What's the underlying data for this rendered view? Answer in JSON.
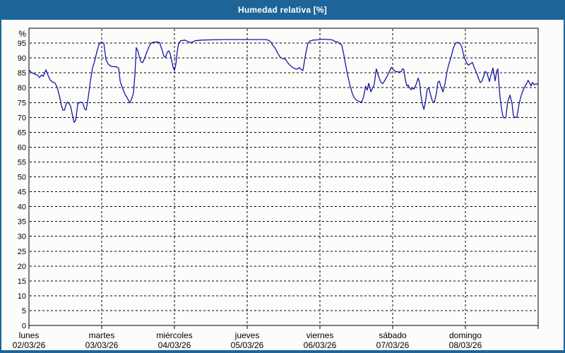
{
  "window": {
    "title": "Humedad relativa [%]"
  },
  "colors": {
    "titlebar_and_border": "#1d6598",
    "title_text": "#ffffff",
    "background": "#fcfdfb",
    "grid": "#000000",
    "series_line": "#1515a3"
  },
  "chart_data": {
    "type": "line",
    "title": "Humedad relativa [%]",
    "y_unit": "%",
    "ylim": [
      0,
      100
    ],
    "y_ticks": [
      0,
      5,
      10,
      15,
      20,
      25,
      30,
      35,
      40,
      45,
      50,
      55,
      60,
      65,
      70,
      75,
      80,
      85,
      90,
      95
    ],
    "x_span_hours": 168,
    "x_day_ticks_hours": [
      0,
      24,
      48,
      72,
      96,
      120,
      144,
      168
    ],
    "grid": "dashed",
    "legend": "none",
    "x_days": [
      {
        "name": "lunes",
        "date": "02/03/26"
      },
      {
        "name": "martes",
        "date": "03/03/26"
      },
      {
        "name": "miércoles",
        "date": "04/03/26"
      },
      {
        "name": "jueves",
        "date": "05/03/26"
      },
      {
        "name": "viernes",
        "date": "06/03/26"
      },
      {
        "name": "sábado",
        "date": "07/03/26"
      },
      {
        "name": "domingo",
        "date": "08/03/26"
      }
    ],
    "series": [
      {
        "name": "Humedad relativa",
        "color": "#1515a3",
        "points": [
          [
            0,
            86.0
          ],
          [
            0.7,
            85.2
          ],
          [
            1.6,
            84.7
          ],
          [
            2.8,
            84.2
          ],
          [
            3.5,
            83.4
          ],
          [
            4.2,
            84.3
          ],
          [
            4.7,
            83.8
          ],
          [
            5.6,
            86.0
          ],
          [
            6.3,
            84.2
          ],
          [
            7.0,
            82.6
          ],
          [
            7.9,
            81.8
          ],
          [
            8.6,
            81.6
          ],
          [
            9.3,
            80.2
          ],
          [
            9.8,
            78.2
          ],
          [
            10.3,
            76.2
          ],
          [
            10.7,
            74.0
          ],
          [
            11.2,
            72.5
          ],
          [
            11.7,
            72.4
          ],
          [
            12.3,
            74.6
          ],
          [
            12.8,
            75.2
          ],
          [
            13.7,
            73.9
          ],
          [
            14.4,
            70.5
          ],
          [
            14.9,
            68.3
          ],
          [
            15.4,
            69.0
          ],
          [
            16.1,
            74.5
          ],
          [
            16.8,
            75.1
          ],
          [
            17.7,
            75.0
          ],
          [
            18.4,
            72.8
          ],
          [
            18.9,
            72.5
          ],
          [
            19.6,
            77.0
          ],
          [
            20.3,
            82.4
          ],
          [
            21.0,
            86.8
          ],
          [
            21.7,
            89.0
          ],
          [
            22.4,
            92.0
          ],
          [
            23.1,
            94.5
          ],
          [
            23.8,
            95.3
          ],
          [
            24.7,
            95.0
          ],
          [
            25.4,
            89.6
          ],
          [
            26.1,
            88.0
          ],
          [
            27.0,
            87.2
          ],
          [
            27.7,
            87.1
          ],
          [
            28.9,
            87.0
          ],
          [
            29.6,
            86.6
          ],
          [
            30.1,
            82.1
          ],
          [
            30.8,
            80.0
          ],
          [
            31.7,
            77.8
          ],
          [
            32.4,
            76.6
          ],
          [
            33.3,
            74.9
          ],
          [
            34.0,
            76.5
          ],
          [
            34.5,
            78.5
          ],
          [
            35.0,
            85.0
          ],
          [
            35.4,
            93.5
          ],
          [
            35.9,
            92.5
          ],
          [
            36.4,
            90.5
          ],
          [
            37.0,
            88.6
          ],
          [
            37.5,
            88.4
          ],
          [
            38.2,
            90.0
          ],
          [
            38.9,
            92.0
          ],
          [
            39.6,
            93.8
          ],
          [
            40.3,
            95.0
          ],
          [
            41.0,
            95.3
          ],
          [
            42.2,
            95.4
          ],
          [
            43.1,
            95.2
          ],
          [
            43.8,
            93.0
          ],
          [
            44.5,
            90.6
          ],
          [
            45.0,
            90.2
          ],
          [
            45.7,
            92.0
          ],
          [
            46.1,
            92.4
          ],
          [
            46.6,
            91.5
          ],
          [
            47.1,
            89.0
          ],
          [
            47.5,
            87.0
          ],
          [
            48.0,
            85.8
          ],
          [
            48.5,
            88.0
          ],
          [
            48.9,
            92.0
          ],
          [
            49.4,
            95.0
          ],
          [
            50.1,
            95.8
          ],
          [
            51.5,
            96.0
          ],
          [
            52.9,
            95.3
          ],
          [
            53.8,
            95.2
          ],
          [
            54.8,
            95.8
          ],
          [
            56.9,
            96.0
          ],
          [
            60.3,
            96.1
          ],
          [
            65.0,
            96.2
          ],
          [
            69.7,
            96.2
          ],
          [
            74.3,
            96.2
          ],
          [
            77.8,
            96.2
          ],
          [
            79.0,
            96.0
          ],
          [
            79.7,
            95.5
          ],
          [
            80.4,
            94.3
          ],
          [
            81.3,
            93.2
          ],
          [
            82.0,
            91.7
          ],
          [
            83.0,
            90.1
          ],
          [
            83.7,
            89.8
          ],
          [
            84.6,
            89.6
          ],
          [
            85.3,
            88.5
          ],
          [
            86.0,
            87.7
          ],
          [
            86.9,
            86.9
          ],
          [
            87.8,
            86.4
          ],
          [
            88.5,
            86.2
          ],
          [
            89.2,
            86.8
          ],
          [
            89.9,
            86.0
          ],
          [
            90.4,
            85.8
          ],
          [
            91.1,
            90.3
          ],
          [
            91.6,
            92.8
          ],
          [
            92.0,
            94.8
          ],
          [
            92.7,
            95.7
          ],
          [
            93.7,
            96.0
          ],
          [
            95.3,
            96.1
          ],
          [
            96.5,
            96.3
          ],
          [
            97.6,
            96.3
          ],
          [
            100.0,
            96.1
          ],
          [
            100.9,
            95.6
          ],
          [
            101.8,
            95.4
          ],
          [
            102.5,
            94.8
          ],
          [
            103.2,
            94.4
          ],
          [
            103.9,
            91.0
          ],
          [
            104.6,
            87.0
          ],
          [
            105.3,
            83.5
          ],
          [
            106.0,
            80.5
          ],
          [
            106.7,
            78.0
          ],
          [
            107.4,
            76.5
          ],
          [
            108.1,
            75.8
          ],
          [
            108.8,
            75.4
          ],
          [
            109.8,
            75.2
          ],
          [
            110.4,
            77.0
          ],
          [
            111.1,
            80.5
          ],
          [
            111.6,
            79.2
          ],
          [
            112.1,
            81.5
          ],
          [
            112.8,
            78.6
          ],
          [
            113.5,
            80.2
          ],
          [
            113.9,
            81.0
          ],
          [
            114.6,
            86.3
          ],
          [
            115.3,
            84.0
          ],
          [
            116.0,
            82.0
          ],
          [
            116.7,
            81.3
          ],
          [
            117.4,
            82.4
          ],
          [
            118.1,
            83.7
          ],
          [
            118.8,
            85.2
          ],
          [
            119.5,
            86.8
          ],
          [
            120.5,
            85.8
          ],
          [
            121.2,
            85.4
          ],
          [
            122.1,
            85.3
          ],
          [
            122.8,
            85.4
          ],
          [
            123.3,
            86.4
          ],
          [
            123.7,
            86.0
          ],
          [
            124.2,
            82.5
          ],
          [
            124.7,
            80.6
          ],
          [
            125.1,
            80.9
          ],
          [
            125.6,
            79.9
          ],
          [
            126.1,
            79.3
          ],
          [
            126.5,
            79.9
          ],
          [
            127.0,
            79.5
          ],
          [
            127.7,
            81.0
          ],
          [
            128.4,
            83.2
          ],
          [
            128.9,
            81.5
          ],
          [
            129.3,
            77.5
          ],
          [
            129.8,
            74.5
          ],
          [
            130.3,
            72.7
          ],
          [
            130.7,
            74.5
          ],
          [
            131.4,
            79.5
          ],
          [
            131.9,
            80.0
          ],
          [
            132.4,
            78.0
          ],
          [
            133.1,
            75.5
          ],
          [
            133.8,
            75.1
          ],
          [
            134.5,
            78.5
          ],
          [
            134.9,
            81.8
          ],
          [
            135.4,
            82.2
          ],
          [
            135.9,
            80.5
          ],
          [
            136.6,
            78.6
          ],
          [
            137.3,
            81.5
          ],
          [
            138.0,
            85.9
          ],
          [
            138.7,
            88.5
          ],
          [
            139.4,
            90.8
          ],
          [
            140.0,
            93.3
          ],
          [
            140.7,
            94.9
          ],
          [
            141.4,
            95.2
          ],
          [
            142.1,
            95.1
          ],
          [
            142.8,
            93.7
          ],
          [
            143.5,
            90.5
          ],
          [
            144.2,
            88.8
          ],
          [
            144.9,
            87.6
          ],
          [
            145.6,
            88.0
          ],
          [
            146.3,
            88.5
          ],
          [
            147.0,
            86.5
          ],
          [
            147.7,
            85.0
          ],
          [
            148.4,
            83.0
          ],
          [
            148.9,
            81.7
          ],
          [
            149.4,
            82.1
          ],
          [
            150.1,
            84.1
          ],
          [
            150.5,
            85.5
          ],
          [
            151.2,
            84.7
          ],
          [
            151.9,
            82.1
          ],
          [
            152.6,
            85.0
          ],
          [
            153.1,
            86.6
          ],
          [
            153.8,
            82.3
          ],
          [
            154.3,
            85.5
          ],
          [
            154.7,
            86.3
          ],
          [
            155.4,
            77.0
          ],
          [
            155.9,
            73.0
          ],
          [
            156.4,
            70.2
          ],
          [
            156.8,
            69.8
          ],
          [
            157.3,
            69.9
          ],
          [
            158.0,
            75.5
          ],
          [
            158.7,
            77.5
          ],
          [
            159.4,
            74.6
          ],
          [
            159.8,
            70.8
          ],
          [
            160.3,
            69.9
          ],
          [
            161.0,
            70.2
          ],
          [
            161.7,
            74.6
          ],
          [
            162.4,
            77.4
          ],
          [
            163.3,
            79.8
          ],
          [
            164.0,
            81.0
          ],
          [
            164.7,
            82.5
          ],
          [
            165.7,
            80.6
          ],
          [
            166.1,
            81.8
          ],
          [
            166.6,
            81.0
          ],
          [
            167.3,
            81.3
          ],
          [
            168.0,
            81.2
          ]
        ]
      }
    ]
  }
}
